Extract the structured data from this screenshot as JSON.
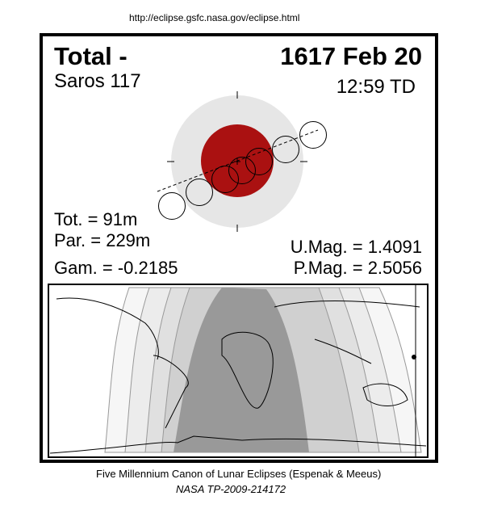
{
  "url": "http://eclipse.gsfc.nasa.gov/eclipse.html",
  "eclipse_type": "Total  -",
  "date": "1617 Feb 20",
  "saros": "Saros 117",
  "time": "12:59 TD",
  "tot": "Tot. =  91m",
  "par": "Par. = 229m",
  "gam": "Gam. = -0.2185",
  "umag": "U.Mag. = 1.4091",
  "pmag": "P.Mag. = 2.5056",
  "footer": "Five Millennium Canon of Lunar Eclipses (Espenak & Meeus)",
  "footer2": "NASA TP-2009-214172",
  "colors": {
    "umbra": "#aa1111",
    "penumbra": "#e6e6e6",
    "map_total": "#999999"
  }
}
